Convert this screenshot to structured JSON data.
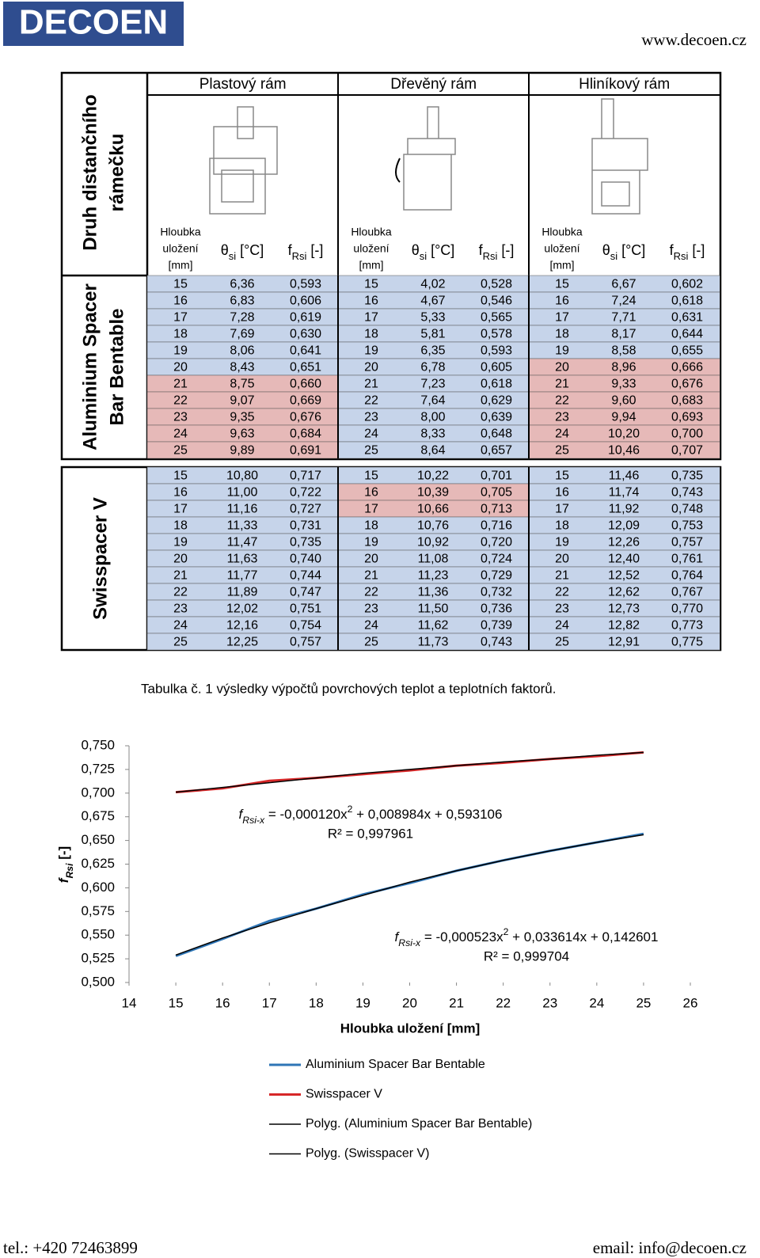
{
  "header": {
    "logo": "DECOEN",
    "website": "www.decoen.cz"
  },
  "table": {
    "row_header": [
      "Druh distančního",
      "rámečku"
    ],
    "frames": [
      "Plastový rám",
      "Dřevěný rám",
      "Hliníkový rám"
    ],
    "col_depth": [
      "Hloubka",
      "uložení",
      "[mm]"
    ],
    "col_theta": [
      "θ",
      "si",
      " [°C]"
    ],
    "col_f": [
      "f",
      "Rsi",
      " [-]"
    ],
    "groups": [
      {
        "label": [
          "Aluminium Spacer",
          "Bar Bentable"
        ],
        "highlight": [
          [
            0,
            6
          ],
          [
            0,
            7
          ],
          [
            0,
            8
          ],
          [
            0,
            9
          ],
          [
            0,
            10
          ],
          [
            2,
            5
          ],
          [
            2,
            6
          ],
          [
            2,
            7
          ],
          [
            2,
            8
          ],
          [
            2,
            9
          ],
          [
            2,
            10
          ]
        ],
        "rows": [
          [
            "15",
            "6,36",
            "0,593",
            "15",
            "4,02",
            "0,528",
            "15",
            "6,67",
            "0,602"
          ],
          [
            "16",
            "6,83",
            "0,606",
            "16",
            "4,67",
            "0,546",
            "16",
            "7,24",
            "0,618"
          ],
          [
            "17",
            "7,28",
            "0,619",
            "17",
            "5,33",
            "0,565",
            "17",
            "7,71",
            "0,631"
          ],
          [
            "18",
            "7,69",
            "0,630",
            "18",
            "5,81",
            "0,578",
            "18",
            "8,17",
            "0,644"
          ],
          [
            "19",
            "8,06",
            "0,641",
            "19",
            "6,35",
            "0,593",
            "19",
            "8,58",
            "0,655"
          ],
          [
            "20",
            "8,43",
            "0,651",
            "20",
            "6,78",
            "0,605",
            "20",
            "8,96",
            "0,666"
          ],
          [
            "21",
            "8,75",
            "0,660",
            "21",
            "7,23",
            "0,618",
            "21",
            "9,33",
            "0,676"
          ],
          [
            "22",
            "9,07",
            "0,669",
            "22",
            "7,64",
            "0,629",
            "22",
            "9,60",
            "0,683"
          ],
          [
            "23",
            "9,35",
            "0,676",
            "23",
            "8,00",
            "0,639",
            "23",
            "9,94",
            "0,693"
          ],
          [
            "24",
            "9,63",
            "0,684",
            "24",
            "8,33",
            "0,648",
            "24",
            "10,20",
            "0,700"
          ],
          [
            "25",
            "9,89",
            "0,691",
            "25",
            "8,64",
            "0,657",
            "25",
            "10,46",
            "0,707"
          ]
        ]
      },
      {
        "label": [
          "Swisspacer V"
        ],
        "highlight": [
          [
            1,
            1
          ],
          [
            1,
            2
          ]
        ],
        "rows": [
          [
            "15",
            "10,80",
            "0,717",
            "15",
            "10,22",
            "0,701",
            "15",
            "11,46",
            "0,735"
          ],
          [
            "16",
            "11,00",
            "0,722",
            "16",
            "10,39",
            "0,705",
            "16",
            "11,74",
            "0,743"
          ],
          [
            "17",
            "11,16",
            "0,727",
            "17",
            "10,66",
            "0,713",
            "17",
            "11,92",
            "0,748"
          ],
          [
            "18",
            "11,33",
            "0,731",
            "18",
            "10,76",
            "0,716",
            "18",
            "12,09",
            "0,753"
          ],
          [
            "19",
            "11,47",
            "0,735",
            "19",
            "10,92",
            "0,720",
            "19",
            "12,26",
            "0,757"
          ],
          [
            "20",
            "11,63",
            "0,740",
            "20",
            "11,08",
            "0,724",
            "20",
            "12,40",
            "0,761"
          ],
          [
            "21",
            "11,77",
            "0,744",
            "21",
            "11,23",
            "0,729",
            "21",
            "12,52",
            "0,764"
          ],
          [
            "22",
            "11,89",
            "0,747",
            "22",
            "11,36",
            "0,732",
            "22",
            "12,62",
            "0,767"
          ],
          [
            "23",
            "12,02",
            "0,751",
            "23",
            "11,50",
            "0,736",
            "23",
            "12,73",
            "0,770"
          ],
          [
            "24",
            "12,16",
            "0,754",
            "24",
            "11,62",
            "0,739",
            "24",
            "12,82",
            "0,773"
          ],
          [
            "25",
            "12,25",
            "0,757",
            "25",
            "11,73",
            "0,743",
            "25",
            "12,91",
            "0,775"
          ]
        ]
      }
    ],
    "caption": "Tabulka č. 1 výsledky výpočtů povrchových teplot a teplotních faktorů."
  },
  "chart_data": {
    "type": "line",
    "x": [
      15,
      16,
      17,
      18,
      19,
      20,
      21,
      22,
      23,
      24,
      25
    ],
    "xlim": [
      14,
      26
    ],
    "xticks": [
      14,
      15,
      16,
      17,
      18,
      19,
      20,
      21,
      22,
      23,
      24,
      25,
      26
    ],
    "ylim": [
      0.5,
      0.75
    ],
    "yticks": [
      {
        "value": 0.5,
        "label": "0,500"
      },
      {
        "value": 0.525,
        "label": "0,525"
      },
      {
        "value": 0.55,
        "label": "0,550"
      },
      {
        "value": 0.575,
        "label": "0,575"
      },
      {
        "value": 0.6,
        "label": "0,600"
      },
      {
        "value": 0.625,
        "label": "0,625"
      },
      {
        "value": 0.65,
        "label": "0,650"
      },
      {
        "value": 0.675,
        "label": "0,675"
      },
      {
        "value": 0.7,
        "label": "0,700"
      },
      {
        "value": 0.725,
        "label": "0,725"
      },
      {
        "value": 0.75,
        "label": "0,750"
      }
    ],
    "x_label": "Hloubka uložení [mm]",
    "y_label": [
      "f",
      "Rsi",
      " [-]"
    ],
    "series": [
      {
        "name": "Aluminium Spacer Bar Bentable",
        "color": "#2e75b6",
        "values": [
          0.528,
          0.546,
          0.565,
          0.578,
          0.593,
          0.605,
          0.618,
          0.629,
          0.639,
          0.648,
          0.657
        ]
      },
      {
        "name": "Swisspacer V",
        "color": "#d62728",
        "values": [
          0.701,
          0.705,
          0.713,
          0.716,
          0.72,
          0.724,
          0.729,
          0.732,
          0.736,
          0.739,
          0.743
        ]
      },
      {
        "name": "Polyg. (Aluminium Spacer Bar Bentable)",
        "color": "#000000",
        "values": [
          0.529,
          0.547,
          0.563,
          0.578,
          0.592,
          0.606,
          0.618,
          0.629,
          0.639,
          0.648,
          0.656
        ]
      },
      {
        "name": "Polyg. (Swisspacer V)",
        "color": "#000000",
        "values": [
          0.701,
          0.706,
          0.711,
          0.716,
          0.721,
          0.725,
          0.729,
          0.733,
          0.736,
          0.74,
          0.743
        ]
      }
    ],
    "annotations": [
      {
        "equation": [
          "f",
          "Rsi-x",
          " = -0,000120x",
          "2",
          " + 0,008984x + 0,593106"
        ],
        "r2": "R² = 0,997961"
      },
      {
        "equation": [
          "f",
          "Rsi-x",
          " = -0,000523x",
          "2",
          " + 0,033614x + 0,142601"
        ],
        "r2": "R² = 0,999704"
      }
    ]
  },
  "footer": {
    "phone": "tel.: +420 72463899",
    "email": "email: info@decoen.cz"
  }
}
